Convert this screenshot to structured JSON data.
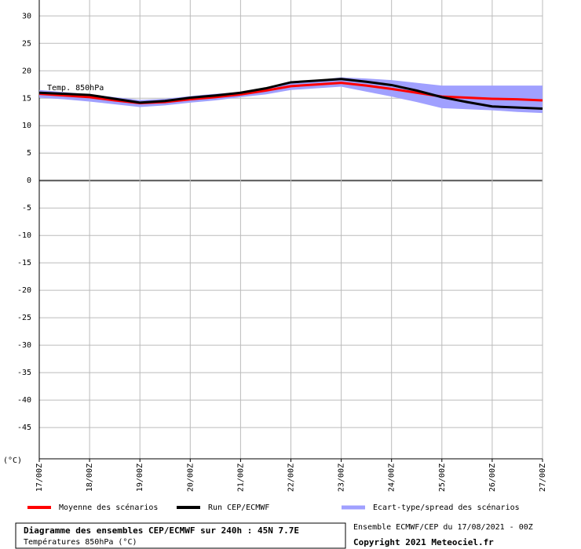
{
  "chart_data": {
    "type": "line",
    "annotation": "Temp. 850hPa",
    "y_label": "(°C)",
    "categories": [
      "17/00Z",
      null,
      "18/00Z",
      null,
      "19/00Z",
      null,
      "20/00Z",
      null,
      "21/00Z",
      null,
      "22/00Z",
      null,
      "23/00Z",
      null,
      "24/00Z",
      null,
      "25/00Z",
      null,
      "26/00Z",
      null,
      "27/00Z"
    ],
    "ylim": [
      -50.7,
      32.9
    ],
    "yticks": [
      30,
      25,
      20,
      15,
      10,
      5,
      0,
      -5,
      -10,
      -15,
      -20,
      -25,
      -30,
      -35,
      -40,
      -45
    ],
    "grid": true,
    "series": [
      {
        "name": "Moyenne des scénarios",
        "color": "#ff0000",
        "values": [
          15.8,
          15.5,
          15.2,
          14.6,
          14.1,
          14.3,
          14.8,
          15.2,
          15.7,
          16.4,
          17.2,
          17.5,
          17.8,
          17.3,
          16.7,
          16.0,
          15.3,
          15.1,
          14.9,
          14.8,
          14.6
        ]
      },
      {
        "name": "Run CEP/ECMWF",
        "color": "#000000",
        "values": [
          16.0,
          15.8,
          15.6,
          14.9,
          14.2,
          14.5,
          15.1,
          15.5,
          16.0,
          16.8,
          17.9,
          18.2,
          18.5,
          18.0,
          17.4,
          16.4,
          15.2,
          14.3,
          13.5,
          13.3,
          13.1
        ]
      },
      {
        "name": "Ecart-type/spread des scénarios",
        "color": "#a0a0ff",
        "high": [
          16.5,
          16.1,
          15.7,
          15.2,
          14.7,
          14.9,
          15.4,
          15.8,
          16.1,
          16.8,
          17.7,
          18.3,
          18.8,
          18.6,
          18.3,
          17.8,
          17.3,
          17.3,
          17.3,
          17.3,
          17.3
        ],
        "low": [
          15.1,
          14.8,
          14.4,
          13.9,
          13.4,
          13.7,
          14.2,
          14.6,
          15.2,
          15.7,
          16.5,
          16.8,
          17.1,
          16.2,
          15.3,
          14.3,
          13.2,
          13.0,
          12.8,
          12.5,
          12.3
        ]
      }
    ],
    "footer": {
      "title": "Diagramme des ensembles CEP/ECMWF sur 240h : 45N 7.7E",
      "subtitle": "Températures 850hPa (°C)",
      "run": "Ensemble ECMWF/CEP du 17/08/2021 - 00Z",
      "copyright": "Copyright 2021 Meteociel.fr"
    }
  }
}
